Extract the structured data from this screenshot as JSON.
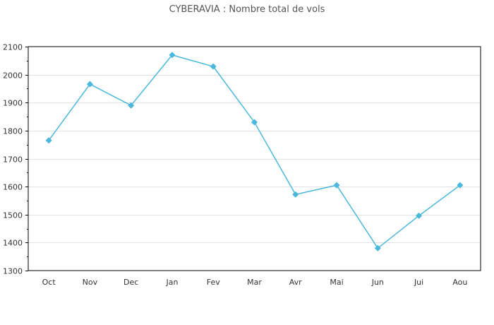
{
  "chart_data": {
    "type": "line",
    "title": "CYBERAVIA : Nombre total de vols",
    "xlabel": "",
    "ylabel": "",
    "categories": [
      "Oct",
      "Nov",
      "Dec",
      "Jan",
      "Fev",
      "Mar",
      "Avr",
      "Mai",
      "Jun",
      "Jui",
      "Aou"
    ],
    "series": [
      {
        "name": "Nombre total de vols",
        "values": [
          1765,
          1966,
          1890,
          2070,
          2029,
          1830,
          1572,
          1605,
          1380,
          1496,
          1605
        ],
        "color": "#4ab8dc"
      }
    ],
    "ylim": [
      1300,
      2100
    ],
    "yticks": [
      1300,
      1400,
      1500,
      1600,
      1700,
      1800,
      1900,
      2000,
      2100
    ],
    "grid": true,
    "legend": "none"
  }
}
